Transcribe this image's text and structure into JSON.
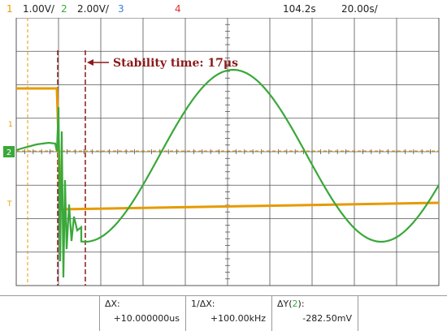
{
  "topbar": {
    "ch1_num": "1",
    "ch1_scale": "1.00V/",
    "ch2_num": "2",
    "ch2_scale": "2.00V/",
    "ch3_num": "3",
    "ch4_num": "4",
    "time_offset": "104.2s",
    "time_scale": "20.00s/"
  },
  "annotation": {
    "stability_label": "Stability time: 17μs"
  },
  "markers": {
    "ch1_ground": "1",
    "ch2_ground": "2",
    "trigger": "T"
  },
  "readout": {
    "dx_label": "ΔX:",
    "dx_value": "+10.000000us",
    "inv_dx_label": "1/ΔX:",
    "inv_dx_value": "+100.00kHz",
    "dy_label_prefix": "ΔY(",
    "dy_channel": "2",
    "dy_label_suffix": "):",
    "dy_value": "-282.50mV"
  },
  "colors": {
    "ch1": "#e69a00",
    "ch2": "#3aa83a",
    "ch3": "#3a7fd5",
    "ch4": "#e03030",
    "annotation": "#8b1a1a",
    "grid": "#555555"
  }
}
